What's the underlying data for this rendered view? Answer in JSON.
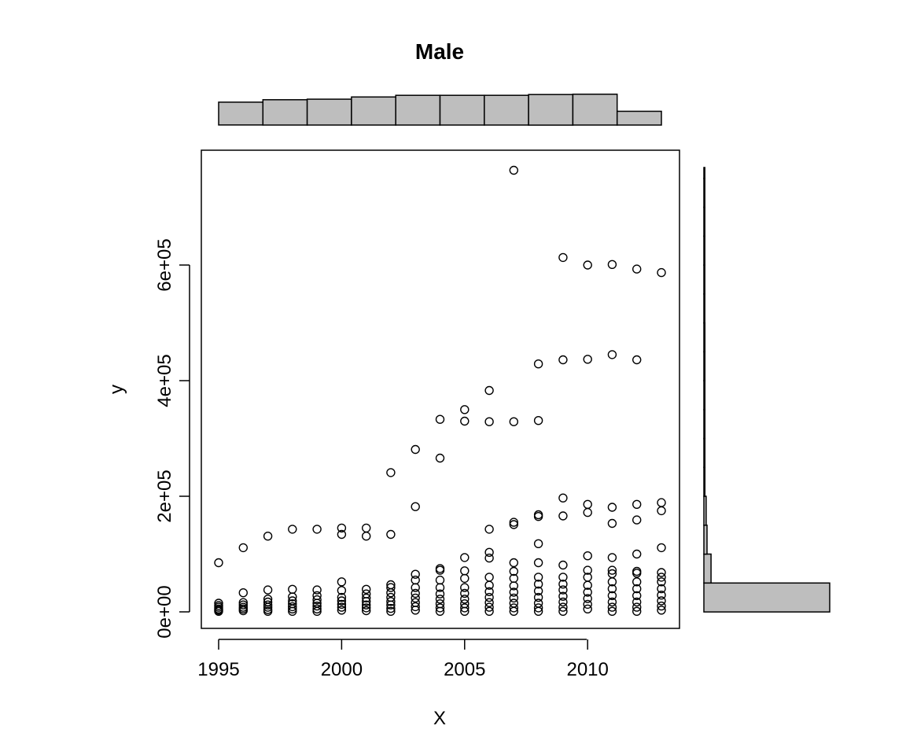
{
  "chart_data": {
    "type": "scatter",
    "title": "Male",
    "xlabel": "X",
    "ylabel": "y",
    "xlim": [
      1995,
      2013
    ],
    "ylim": [
      -20000,
      780000
    ],
    "x_ticks": [
      1995,
      2000,
      2005,
      2010
    ],
    "x_tick_labels": [
      "1995",
      "2000",
      "2005",
      "2010"
    ],
    "y_ticks": [
      0,
      200000,
      400000,
      600000
    ],
    "y_tick_labels": [
      "0e+00",
      "2e+05",
      "4e+05",
      "6e+05"
    ],
    "points": [
      {
        "x": 1995,
        "y": 85000
      },
      {
        "x": 1995,
        "y": 15000
      },
      {
        "x": 1995,
        "y": 11000
      },
      {
        "x": 1995,
        "y": 8000
      },
      {
        "x": 1995,
        "y": 5000
      },
      {
        "x": 1995,
        "y": 3000
      },
      {
        "x": 1995,
        "y": 1000
      },
      {
        "x": 1996,
        "y": 111000
      },
      {
        "x": 1996,
        "y": 33000
      },
      {
        "x": 1996,
        "y": 16000
      },
      {
        "x": 1996,
        "y": 12000
      },
      {
        "x": 1996,
        "y": 8000
      },
      {
        "x": 1996,
        "y": 5000
      },
      {
        "x": 1996,
        "y": 2000
      },
      {
        "x": 1997,
        "y": 131000
      },
      {
        "x": 1997,
        "y": 38000
      },
      {
        "x": 1997,
        "y": 22000
      },
      {
        "x": 1997,
        "y": 17000
      },
      {
        "x": 1997,
        "y": 12000
      },
      {
        "x": 1997,
        "y": 8000
      },
      {
        "x": 1997,
        "y": 4000
      },
      {
        "x": 1997,
        "y": 1000
      },
      {
        "x": 1998,
        "y": 143000
      },
      {
        "x": 1998,
        "y": 39000
      },
      {
        "x": 1998,
        "y": 26000
      },
      {
        "x": 1998,
        "y": 19000
      },
      {
        "x": 1998,
        "y": 14000
      },
      {
        "x": 1998,
        "y": 9000
      },
      {
        "x": 1998,
        "y": 5000
      },
      {
        "x": 1998,
        "y": 1000
      },
      {
        "x": 1999,
        "y": 143000
      },
      {
        "x": 1999,
        "y": 38000
      },
      {
        "x": 1999,
        "y": 28000
      },
      {
        "x": 1999,
        "y": 21000
      },
      {
        "x": 1999,
        "y": 15000
      },
      {
        "x": 1999,
        "y": 10000
      },
      {
        "x": 1999,
        "y": 5000
      },
      {
        "x": 1999,
        "y": 1000
      },
      {
        "x": 2000,
        "y": 145000
      },
      {
        "x": 2000,
        "y": 134000
      },
      {
        "x": 2000,
        "y": 52000
      },
      {
        "x": 2000,
        "y": 37000
      },
      {
        "x": 2000,
        "y": 25000
      },
      {
        "x": 2000,
        "y": 19000
      },
      {
        "x": 2000,
        "y": 13000
      },
      {
        "x": 2000,
        "y": 8000
      },
      {
        "x": 2000,
        "y": 3000
      },
      {
        "x": 2001,
        "y": 145000
      },
      {
        "x": 2001,
        "y": 131000
      },
      {
        "x": 2001,
        "y": 39000
      },
      {
        "x": 2001,
        "y": 31000
      },
      {
        "x": 2001,
        "y": 24000
      },
      {
        "x": 2001,
        "y": 18000
      },
      {
        "x": 2001,
        "y": 12000
      },
      {
        "x": 2001,
        "y": 7000
      },
      {
        "x": 2001,
        "y": 2000
      },
      {
        "x": 2002,
        "y": 241000
      },
      {
        "x": 2002,
        "y": 134000
      },
      {
        "x": 2002,
        "y": 47000
      },
      {
        "x": 2002,
        "y": 42000
      },
      {
        "x": 2002,
        "y": 33000
      },
      {
        "x": 2002,
        "y": 25000
      },
      {
        "x": 2002,
        "y": 18000
      },
      {
        "x": 2002,
        "y": 12000
      },
      {
        "x": 2002,
        "y": 6000
      },
      {
        "x": 2002,
        "y": 1000
      },
      {
        "x": 2003,
        "y": 281000
      },
      {
        "x": 2003,
        "y": 182000
      },
      {
        "x": 2003,
        "y": 65000
      },
      {
        "x": 2003,
        "y": 55000
      },
      {
        "x": 2003,
        "y": 42000
      },
      {
        "x": 2003,
        "y": 32000
      },
      {
        "x": 2003,
        "y": 24000
      },
      {
        "x": 2003,
        "y": 16000
      },
      {
        "x": 2003,
        "y": 9000
      },
      {
        "x": 2003,
        "y": 3000
      },
      {
        "x": 2004,
        "y": 333000
      },
      {
        "x": 2004,
        "y": 266000
      },
      {
        "x": 2004,
        "y": 75000
      },
      {
        "x": 2004,
        "y": 72000
      },
      {
        "x": 2004,
        "y": 55000
      },
      {
        "x": 2004,
        "y": 42000
      },
      {
        "x": 2004,
        "y": 31000
      },
      {
        "x": 2004,
        "y": 22000
      },
      {
        "x": 2004,
        "y": 14000
      },
      {
        "x": 2004,
        "y": 7000
      },
      {
        "x": 2004,
        "y": 1000
      },
      {
        "x": 2005,
        "y": 350000
      },
      {
        "x": 2005,
        "y": 330000
      },
      {
        "x": 2005,
        "y": 94000
      },
      {
        "x": 2005,
        "y": 71000
      },
      {
        "x": 2005,
        "y": 58000
      },
      {
        "x": 2005,
        "y": 42000
      },
      {
        "x": 2005,
        "y": 32000
      },
      {
        "x": 2005,
        "y": 22000
      },
      {
        "x": 2005,
        "y": 14000
      },
      {
        "x": 2005,
        "y": 7000
      },
      {
        "x": 2005,
        "y": 1000
      },
      {
        "x": 2006,
        "y": 383000
      },
      {
        "x": 2006,
        "y": 329000
      },
      {
        "x": 2006,
        "y": 143000
      },
      {
        "x": 2006,
        "y": 103000
      },
      {
        "x": 2006,
        "y": 93000
      },
      {
        "x": 2006,
        "y": 60000
      },
      {
        "x": 2006,
        "y": 46000
      },
      {
        "x": 2006,
        "y": 35000
      },
      {
        "x": 2006,
        "y": 25000
      },
      {
        "x": 2006,
        "y": 16000
      },
      {
        "x": 2006,
        "y": 8000
      },
      {
        "x": 2006,
        "y": 1000
      },
      {
        "x": 2007,
        "y": 764000
      },
      {
        "x": 2007,
        "y": 329000
      },
      {
        "x": 2007,
        "y": 155000
      },
      {
        "x": 2007,
        "y": 151000
      },
      {
        "x": 2007,
        "y": 85000
      },
      {
        "x": 2007,
        "y": 70000
      },
      {
        "x": 2007,
        "y": 58000
      },
      {
        "x": 2007,
        "y": 45000
      },
      {
        "x": 2007,
        "y": 34000
      },
      {
        "x": 2007,
        "y": 24000
      },
      {
        "x": 2007,
        "y": 15000
      },
      {
        "x": 2007,
        "y": 7000
      },
      {
        "x": 2007,
        "y": 1000
      },
      {
        "x": 2008,
        "y": 429000
      },
      {
        "x": 2008,
        "y": 331000
      },
      {
        "x": 2008,
        "y": 168000
      },
      {
        "x": 2008,
        "y": 165000
      },
      {
        "x": 2008,
        "y": 118000
      },
      {
        "x": 2008,
        "y": 85000
      },
      {
        "x": 2008,
        "y": 60000
      },
      {
        "x": 2008,
        "y": 48000
      },
      {
        "x": 2008,
        "y": 36000
      },
      {
        "x": 2008,
        "y": 25000
      },
      {
        "x": 2008,
        "y": 15000
      },
      {
        "x": 2008,
        "y": 7000
      },
      {
        "x": 2008,
        "y": 1000
      },
      {
        "x": 2009,
        "y": 613000
      },
      {
        "x": 2009,
        "y": 436000
      },
      {
        "x": 2009,
        "y": 197000
      },
      {
        "x": 2009,
        "y": 166000
      },
      {
        "x": 2009,
        "y": 81000
      },
      {
        "x": 2009,
        "y": 60000
      },
      {
        "x": 2009,
        "y": 48000
      },
      {
        "x": 2009,
        "y": 38000
      },
      {
        "x": 2009,
        "y": 27000
      },
      {
        "x": 2009,
        "y": 17000
      },
      {
        "x": 2009,
        "y": 8000
      },
      {
        "x": 2009,
        "y": 1000
      },
      {
        "x": 2010,
        "y": 600000
      },
      {
        "x": 2010,
        "y": 437000
      },
      {
        "x": 2010,
        "y": 186000
      },
      {
        "x": 2010,
        "y": 172000
      },
      {
        "x": 2010,
        "y": 97000
      },
      {
        "x": 2010,
        "y": 72000
      },
      {
        "x": 2010,
        "y": 60000
      },
      {
        "x": 2010,
        "y": 46000
      },
      {
        "x": 2010,
        "y": 34000
      },
      {
        "x": 2010,
        "y": 23000
      },
      {
        "x": 2010,
        "y": 13000
      },
      {
        "x": 2010,
        "y": 5000
      },
      {
        "x": 2011,
        "y": 601000
      },
      {
        "x": 2011,
        "y": 445000
      },
      {
        "x": 2011,
        "y": 181000
      },
      {
        "x": 2011,
        "y": 153000
      },
      {
        "x": 2011,
        "y": 94000
      },
      {
        "x": 2011,
        "y": 72000
      },
      {
        "x": 2011,
        "y": 66000
      },
      {
        "x": 2011,
        "y": 52000
      },
      {
        "x": 2011,
        "y": 40000
      },
      {
        "x": 2011,
        "y": 28000
      },
      {
        "x": 2011,
        "y": 17000
      },
      {
        "x": 2011,
        "y": 8000
      },
      {
        "x": 2011,
        "y": 1000
      },
      {
        "x": 2012,
        "y": 593000
      },
      {
        "x": 2012,
        "y": 436000
      },
      {
        "x": 2012,
        "y": 186000
      },
      {
        "x": 2012,
        "y": 159000
      },
      {
        "x": 2012,
        "y": 100000
      },
      {
        "x": 2012,
        "y": 70000
      },
      {
        "x": 2012,
        "y": 67000
      },
      {
        "x": 2012,
        "y": 52000
      },
      {
        "x": 2012,
        "y": 40000
      },
      {
        "x": 2012,
        "y": 28000
      },
      {
        "x": 2012,
        "y": 17000
      },
      {
        "x": 2012,
        "y": 8000
      },
      {
        "x": 2012,
        "y": 1000
      },
      {
        "x": 2013,
        "y": 587000
      },
      {
        "x": 2013,
        "y": 189000
      },
      {
        "x": 2013,
        "y": 175000
      },
      {
        "x": 2013,
        "y": 111000
      },
      {
        "x": 2013,
        "y": 68000
      },
      {
        "x": 2013,
        "y": 60000
      },
      {
        "x": 2013,
        "y": 52000
      },
      {
        "x": 2013,
        "y": 40000
      },
      {
        "x": 2013,
        "y": 29000
      },
      {
        "x": 2013,
        "y": 19000
      },
      {
        "x": 2013,
        "y": 10000
      },
      {
        "x": 2013,
        "y": 3000
      }
    ],
    "x_histogram": {
      "bin_edges": [
        1995,
        1996.8,
        1998.6,
        2000.4,
        2002.2,
        2004,
        2005.8,
        2007.6,
        2009.4,
        2011.2,
        2013
      ],
      "relative_heights": [
        0.83,
        0.92,
        0.94,
        1.02,
        1.08,
        1.08,
        1.08,
        1.11,
        1.12,
        0.5
      ]
    },
    "y_histogram": {
      "bin_edges": [
        0,
        50000,
        100000,
        150000,
        200000,
        250000,
        300000,
        350000,
        400000,
        450000,
        500000,
        550000,
        600000,
        650000,
        700000,
        750000,
        800000
      ],
      "relative_widths": [
        1.0,
        0.057,
        0.025,
        0.018,
        0.008,
        0.008,
        0.008,
        0.008,
        0.008,
        0.008,
        0.004,
        0.004,
        0.004,
        0.004,
        0.004,
        0.004
      ]
    }
  }
}
